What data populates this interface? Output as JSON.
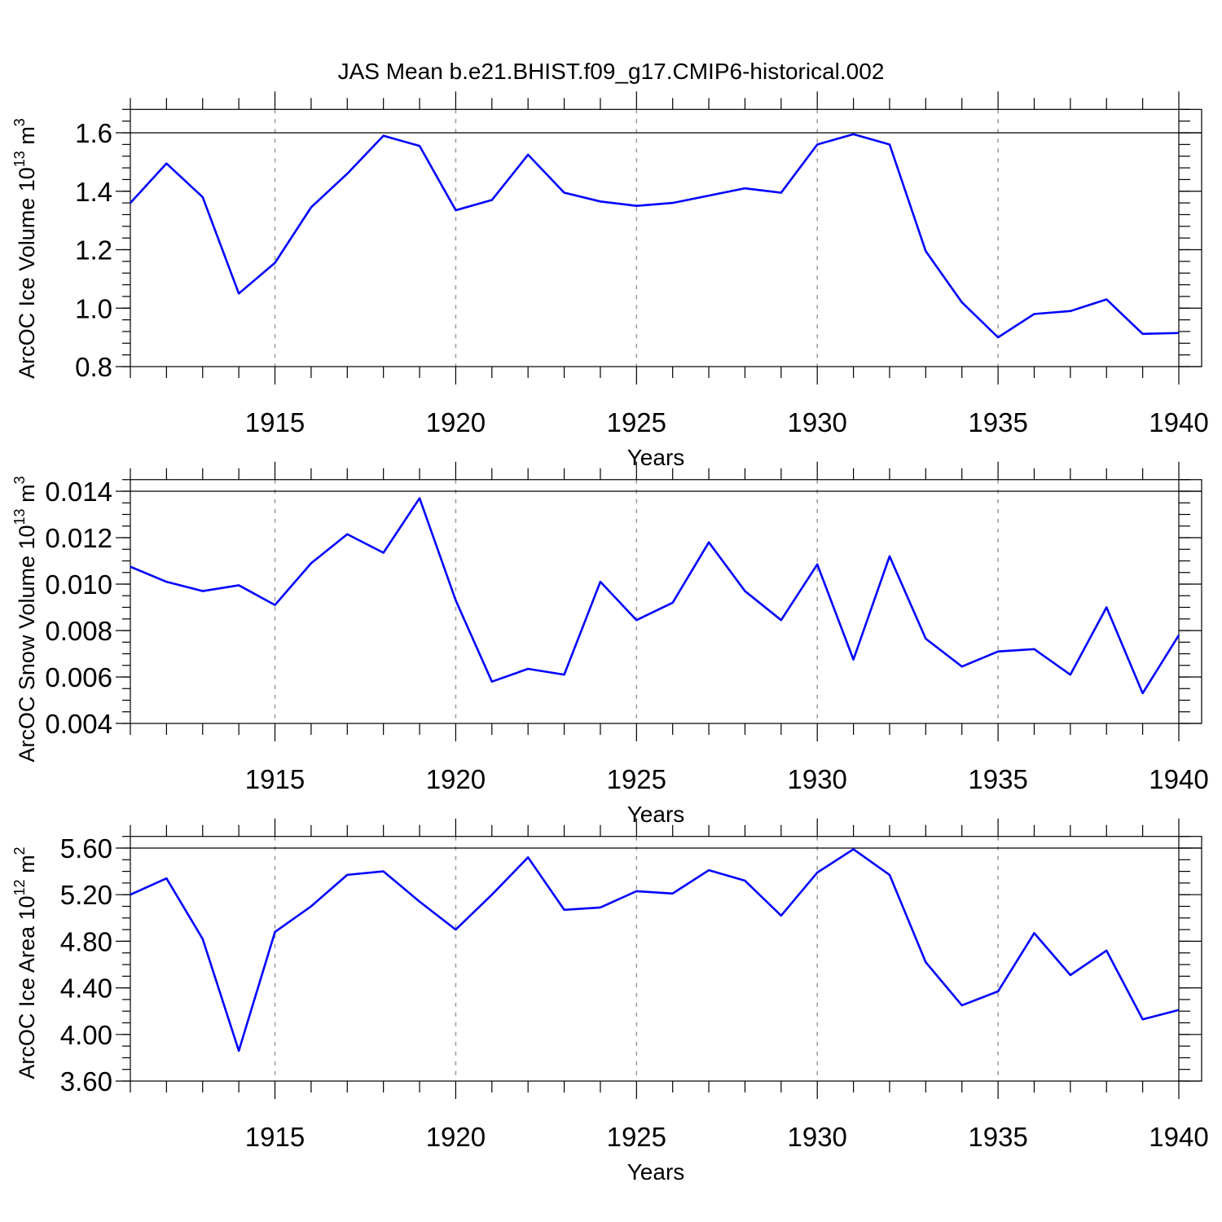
{
  "figure": {
    "title": "JAS Mean b.e21.BHIST.f09_g17.CMIP6-historical.002",
    "line_color": "#0000ff"
  },
  "chart_data": [
    {
      "type": "line",
      "title": "JAS Mean b.e21.BHIST.f09_g17.CMIP6-historical.002",
      "xlabel": "Years",
      "ylabel": "ArcOC Ice Volume 10",
      "ylabel_exp": "13",
      "ylabel_unit": " m",
      "ylabel_unit_exp": "3",
      "xlim": [
        1911,
        1940
      ],
      "ylim": [
        0.8,
        1.68
      ],
      "yticks": [
        0.8,
        1.0,
        1.2,
        1.4,
        1.6
      ],
      "ytick_labels": [
        "0.8",
        "1.0",
        "1.2",
        "1.4",
        "1.6"
      ],
      "ytick_minor_step": 0.04,
      "xticks": [
        1915,
        1920,
        1925,
        1930,
        1935,
        1940
      ],
      "xtick_labels": [
        "1915",
        "1920",
        "1925",
        "1930",
        "1935",
        "1940"
      ],
      "grid": "vertical-dashed",
      "x": [
        1911,
        1912,
        1913,
        1914,
        1915,
        1916,
        1917,
        1918,
        1919,
        1920,
        1921,
        1922,
        1923,
        1924,
        1925,
        1926,
        1927,
        1928,
        1929,
        1930,
        1931,
        1932,
        1933,
        1934,
        1935,
        1936,
        1937,
        1938,
        1939,
        1940
      ],
      "series": [
        {
          "name": "ArcOC Ice Volume",
          "values": [
            1.36,
            1.495,
            1.38,
            1.05,
            1.155,
            1.345,
            1.46,
            1.59,
            1.555,
            1.335,
            1.37,
            1.525,
            1.395,
            1.365,
            1.35,
            1.36,
            1.385,
            1.41,
            1.395,
            1.56,
            1.595,
            1.56,
            1.195,
            1.02,
            0.9,
            0.98,
            0.99,
            1.03,
            0.912,
            0.915
          ]
        }
      ]
    },
    {
      "type": "line",
      "xlabel": "Years",
      "ylabel": "ArcOC Snow Volume 10",
      "ylabel_exp": "13",
      "ylabel_unit": " m",
      "ylabel_unit_exp": "3",
      "xlim": [
        1911,
        1940
      ],
      "ylim": [
        0.004,
        0.0145
      ],
      "yticks": [
        0.004,
        0.006,
        0.008,
        0.01,
        0.012,
        0.014
      ],
      "ytick_labels": [
        "0.004",
        "0.006",
        "0.008",
        "0.010",
        "0.012",
        "0.014"
      ],
      "ytick_minor_step": 0.0005,
      "xticks": [
        1915,
        1920,
        1925,
        1930,
        1935,
        1940
      ],
      "xtick_labels": [
        "1915",
        "1920",
        "1925",
        "1930",
        "1935",
        "1940"
      ],
      "grid": "vertical-dashed",
      "x": [
        1911,
        1912,
        1913,
        1914,
        1915,
        1916,
        1917,
        1918,
        1919,
        1920,
        1921,
        1922,
        1923,
        1924,
        1925,
        1926,
        1927,
        1928,
        1929,
        1930,
        1931,
        1932,
        1933,
        1934,
        1935,
        1936,
        1937,
        1938,
        1939,
        1940
      ],
      "series": [
        {
          "name": "ArcOC Snow Volume",
          "values": [
            0.01075,
            0.0101,
            0.0097,
            0.00995,
            0.0091,
            0.0109,
            0.01215,
            0.01135,
            0.0137,
            0.0093,
            0.0058,
            0.00635,
            0.0061,
            0.0101,
            0.00845,
            0.0092,
            0.0118,
            0.0097,
            0.00845,
            0.01085,
            0.00675,
            0.0112,
            0.00765,
            0.00645,
            0.0071,
            0.0072,
            0.0061,
            0.009,
            0.0053,
            0.0078
          ]
        }
      ]
    },
    {
      "type": "line",
      "xlabel": "Years",
      "ylabel": "ArcOC Ice Area 10",
      "ylabel_exp": "12",
      "ylabel_unit": " m",
      "ylabel_unit_exp": "2",
      "xlim": [
        1911,
        1940
      ],
      "ylim": [
        3.6,
        5.7
      ],
      "yticks": [
        3.6,
        4.0,
        4.4,
        4.8,
        5.2,
        5.6
      ],
      "ytick_labels": [
        "3.60",
        "4.00",
        "4.40",
        "4.80",
        "5.20",
        "5.60"
      ],
      "ytick_minor_step": 0.1,
      "xticks": [
        1915,
        1920,
        1925,
        1930,
        1935,
        1940
      ],
      "xtick_labels": [
        "1915",
        "1920",
        "1925",
        "1930",
        "1935",
        "1940"
      ],
      "grid": "vertical-dashed",
      "x": [
        1911,
        1912,
        1913,
        1914,
        1915,
        1916,
        1917,
        1918,
        1919,
        1920,
        1921,
        1922,
        1923,
        1924,
        1925,
        1926,
        1927,
        1928,
        1929,
        1930,
        1931,
        1932,
        1933,
        1934,
        1935,
        1936,
        1937,
        1938,
        1939,
        1940
      ],
      "series": [
        {
          "name": "ArcOC Ice Area",
          "values": [
            5.2,
            5.34,
            4.82,
            3.86,
            4.88,
            5.1,
            5.37,
            5.4,
            5.14,
            4.9,
            5.2,
            5.52,
            5.07,
            5.09,
            5.23,
            5.21,
            5.41,
            5.32,
            5.02,
            5.39,
            5.59,
            5.37,
            4.62,
            4.25,
            4.37,
            4.87,
            4.51,
            4.72,
            4.13,
            4.21
          ]
        }
      ]
    }
  ]
}
